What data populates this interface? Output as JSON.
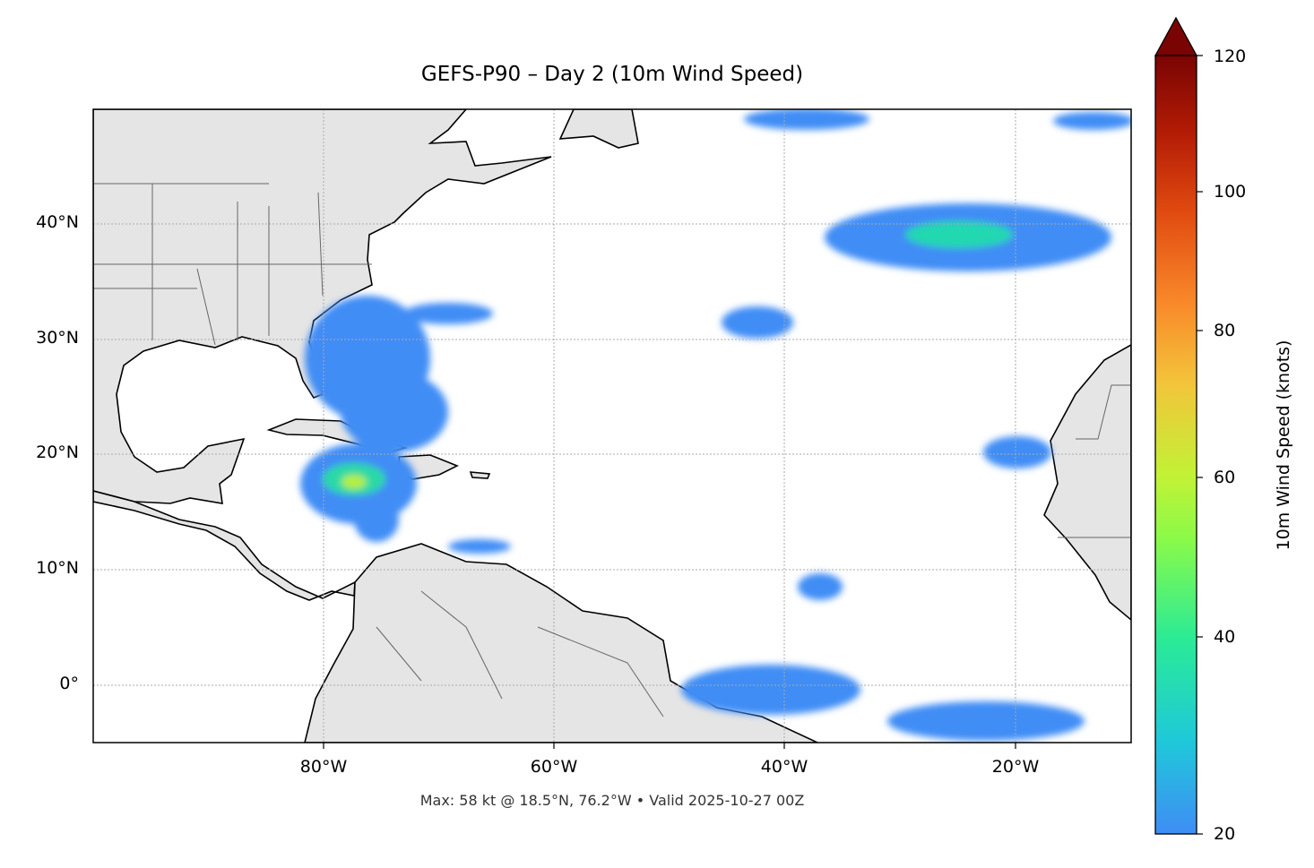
{
  "title": "GEFS-P90 – Day 2 (10m Wind Speed)",
  "footer": "Max: 58 kt @ 18.5°N, 76.2°W • Valid 2025-10-27 00Z",
  "map": {
    "extent": {
      "lon_min": -100,
      "lon_max": -10,
      "lat_min": -5,
      "lat_max": 50
    },
    "lat_labels": [
      "40°N",
      "30°N",
      "20°N",
      "10°N",
      "0°"
    ],
    "lon_labels": [
      "80°W",
      "60°W",
      "40°W",
      "20°W"
    ],
    "gridlines": "dotted",
    "colors": {
      "land": "#e5e5e5",
      "coast": "#000000",
      "borders": "#666666",
      "ocean": "#ffffff"
    }
  },
  "colorbar": {
    "label": "10m Wind Speed (knots)",
    "ticks": [
      "120",
      "100",
      "80",
      "60",
      "40",
      "20"
    ],
    "range": [
      20,
      120
    ],
    "extend": "max",
    "colormap": [
      "#3f8df5",
      "#1fc9d9",
      "#2aeb96",
      "#8bfa48",
      "#c2f236",
      "#f3c43a",
      "#f98a2a",
      "#e04a10",
      "#b31c05",
      "#7a0403"
    ]
  },
  "max_point": {
    "value_kt": 58,
    "lat": 18.5,
    "lon": -76.2
  }
}
